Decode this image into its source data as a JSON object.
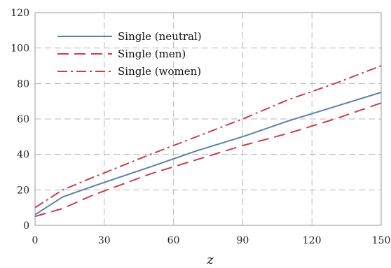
{
  "chart_data": {
    "type": "line",
    "title": "",
    "xlabel": "z",
    "ylabel": "",
    "xlim": [
      0,
      150
    ],
    "ylim": [
      0,
      120
    ],
    "xticks": [
      0,
      30,
      60,
      90,
      120,
      150
    ],
    "yticks": [
      0,
      20,
      40,
      60,
      80,
      100,
      120
    ],
    "grid": true,
    "legend_position": "top-left",
    "series": [
      {
        "name": "Single (neutral)",
        "color": "#5a82a8",
        "style": "solid",
        "x": [
          0,
          12,
          25,
          50,
          70,
          90,
          110,
          130,
          150
        ],
        "y": [
          6,
          16,
          22,
          33,
          42,
          50,
          59,
          67,
          75
        ]
      },
      {
        "name": "Single (men)",
        "color": "#c8404f",
        "style": "dashed",
        "x": [
          0,
          12,
          25,
          50,
          70,
          90,
          110,
          130,
          150
        ],
        "y": [
          5,
          9.5,
          17,
          29,
          37,
          45,
          52,
          60,
          69
        ]
      },
      {
        "name": "Single (women)",
        "color": "#c8404f",
        "style": "dashdot",
        "x": [
          0,
          12,
          25,
          50,
          70,
          90,
          110,
          130,
          150
        ],
        "y": [
          10,
          20,
          27,
          40,
          50,
          60,
          71,
          80,
          90
        ]
      }
    ]
  }
}
